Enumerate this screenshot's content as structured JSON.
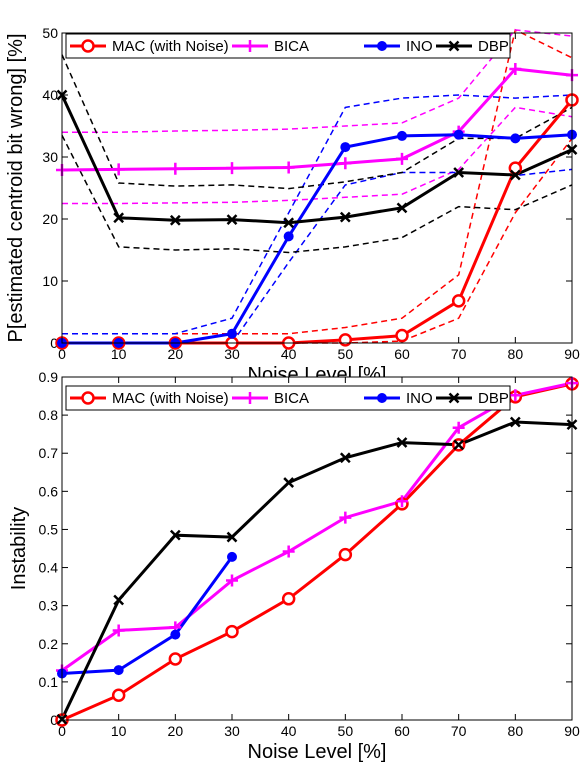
{
  "colors": {
    "mac": "#ff0000",
    "bica": "#ff00ff",
    "ino": "#0000ff",
    "dbp": "#000000"
  },
  "chart_data": [
    {
      "type": "line",
      "xlabel": "Noise Level [%]",
      "ylabel": "P[estimated centroid bit wrong] [%]",
      "xlim": [
        0,
        90
      ],
      "ylim": [
        0,
        50
      ],
      "xticks": [
        "0",
        "10",
        "20",
        "30",
        "40",
        "50",
        "60",
        "70",
        "80",
        "90"
      ],
      "yticks": [
        "0",
        "10",
        "20",
        "30",
        "40",
        "50"
      ],
      "grid": false,
      "legend_position": "top",
      "x": [
        0,
        10,
        20,
        30,
        40,
        50,
        60,
        70,
        80,
        90
      ],
      "series": [
        {
          "name": "MAC (with Noise)",
          "color": "#ff0000",
          "marker": "circle",
          "values": [
            0,
            0,
            0,
            0,
            0,
            0.5,
            1.2,
            6.8,
            28.2,
            39.2
          ],
          "upper": [
            1.5,
            1.5,
            1.5,
            1.5,
            1.5,
            2.5,
            4,
            11,
            50.5,
            46
          ],
          "lower": [
            0,
            0,
            0,
            0,
            0,
            0,
            0.3,
            4,
            21,
            33
          ]
        },
        {
          "name": "BICA",
          "color": "#ff00ff",
          "marker": "plus",
          "values": [
            27.9,
            28,
            28.1,
            28.2,
            28.3,
            29,
            29.7,
            34.1,
            44.2,
            43.2
          ],
          "upper": [
            34,
            34,
            34.2,
            34.3,
            34.5,
            35,
            35.5,
            39.5,
            50.5,
            49.5
          ],
          "lower": [
            22.5,
            22.5,
            22.6,
            22.7,
            23,
            23.5,
            24,
            28,
            38,
            36.5
          ]
        },
        {
          "name": "INO",
          "color": "#0000ff",
          "marker": "dot",
          "values": [
            0,
            0,
            0,
            1.5,
            17.2,
            31.6,
            33.4,
            33.6,
            33,
            33.6
          ],
          "upper": [
            1.5,
            1.5,
            1.5,
            4,
            21,
            38,
            39.5,
            40,
            39.5,
            40
          ],
          "lower": [
            0,
            0,
            0,
            0,
            13,
            25.5,
            27.5,
            27.5,
            27,
            28
          ]
        },
        {
          "name": "DBP",
          "color": "#000000",
          "marker": "x",
          "values": [
            40,
            20.2,
            19.8,
            19.9,
            19.4,
            20.3,
            21.8,
            27.5,
            27.1,
            31.2
          ],
          "upper": [
            46.5,
            25.8,
            25.3,
            25.5,
            24.9,
            26,
            27.5,
            33,
            33,
            38
          ],
          "lower": [
            33.5,
            15.5,
            15,
            15.2,
            14.6,
            15.5,
            17,
            22,
            21.5,
            25.5
          ]
        }
      ]
    },
    {
      "type": "line",
      "xlabel": "Noise Level [%]",
      "ylabel": "Instability",
      "xlim": [
        0,
        90
      ],
      "ylim": [
        0,
        0.9
      ],
      "xticks": [
        "0",
        "10",
        "20",
        "30",
        "40",
        "50",
        "60",
        "70",
        "80",
        "90"
      ],
      "yticks": [
        "0",
        "0.1",
        "0.2",
        "0.3",
        "0.4",
        "0.5",
        "0.6",
        "0.7",
        "0.8",
        "0.9"
      ],
      "grid": false,
      "legend_position": "top",
      "x": [
        0,
        10,
        20,
        30,
        40,
        50,
        60,
        70,
        80,
        90
      ],
      "series": [
        {
          "name": "MAC (with Noise)",
          "color": "#ff0000",
          "marker": "circle",
          "values": [
            0,
            0.065,
            0.16,
            0.232,
            0.318,
            0.434,
            0.567,
            0.722,
            0.848,
            0.882
          ]
        },
        {
          "name": "BICA",
          "color": "#ff00ff",
          "marker": "plus",
          "values": [
            0.13,
            0.235,
            0.243,
            0.366,
            0.442,
            0.531,
            0.574,
            0.767,
            0.852,
            0.884
          ]
        },
        {
          "name": "INO",
          "color": "#0000ff",
          "marker": "dot",
          "x": [
            0,
            10,
            20,
            30
          ],
          "values": [
            0.122,
            0.131,
            0.224,
            0.428
          ]
        },
        {
          "name": "DBP",
          "color": "#000000",
          "marker": "x",
          "values": [
            0.002,
            0.315,
            0.485,
            0.48,
            0.623,
            0.688,
            0.728,
            0.722,
            0.782,
            0.775
          ]
        }
      ]
    }
  ]
}
